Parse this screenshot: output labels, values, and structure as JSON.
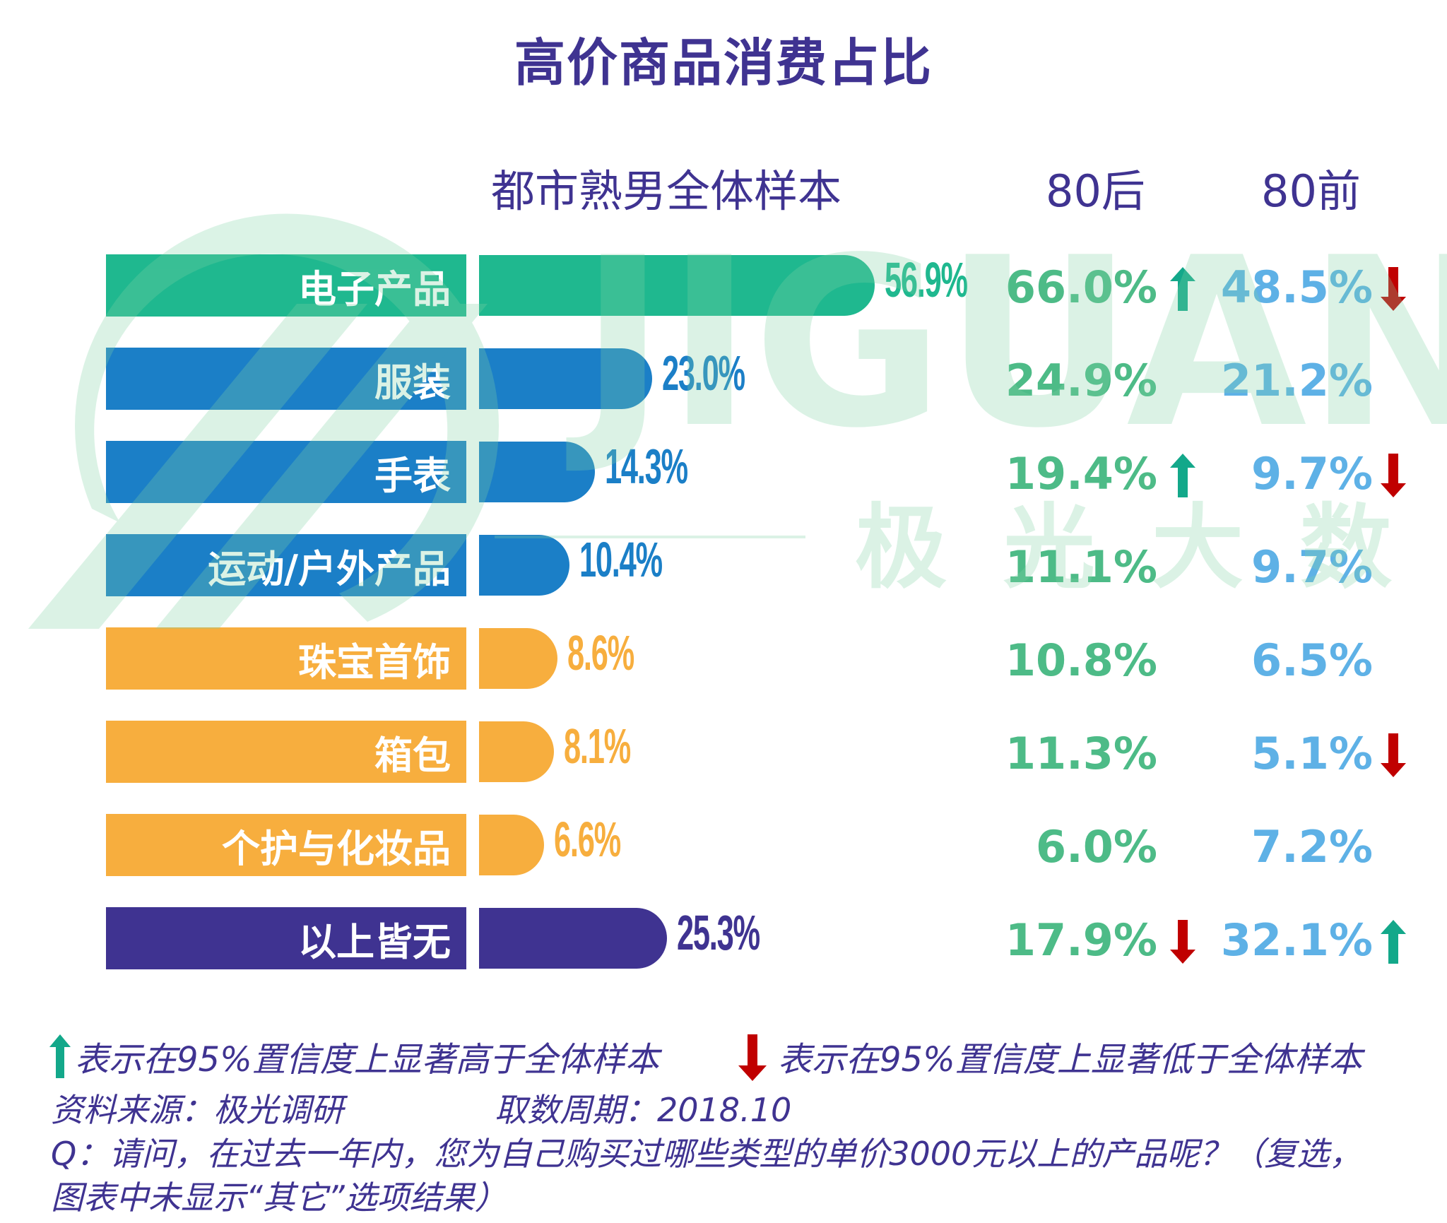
{
  "title": "高价商品消费占比",
  "headers": {
    "total": "都市熟男全体样本",
    "post80": "80后",
    "pre80": "80前"
  },
  "colors": {
    "title": "#3f3391",
    "green_bar": "#1fb88f",
    "blue_bar": "#1b7fc7",
    "orange_bar": "#f7ae3e",
    "purple_bar": "#3f3391",
    "post80_text": "#4dbb87",
    "pre80_text": "#5eb1e6",
    "arrow_up": "#13a88a",
    "arrow_down": "#c00000"
  },
  "chart_data": {
    "type": "bar",
    "orientation": "horizontal",
    "title": "高价商品消费占比",
    "xlabel": "",
    "ylabel": "",
    "categories": [
      "电子产品",
      "服装",
      "手表",
      "运动/户外产品",
      "珠宝首饰",
      "箱包",
      "个护与化妆品",
      "以上皆无"
    ],
    "series": [
      {
        "name": "都市熟男全体样本",
        "values": [
          56.9,
          23.0,
          14.3,
          10.4,
          8.6,
          8.1,
          6.6,
          25.3
        ],
        "labels": [
          "56.9%",
          "23.0%",
          "14.3%",
          "10.4%",
          "8.6%",
          "8.1%",
          "6.6%",
          "25.3%"
        ],
        "bar_colors": [
          "green",
          "blue",
          "blue",
          "blue",
          "orange",
          "orange",
          "orange",
          "purple"
        ]
      },
      {
        "name": "80后",
        "values": [
          66.0,
          24.9,
          19.4,
          11.1,
          10.8,
          11.3,
          6.0,
          17.9
        ],
        "labels": [
          "66.0%",
          "24.9%",
          "19.4%",
          "11.1%",
          "10.8%",
          "11.3%",
          "6.0%",
          "17.9%"
        ],
        "significance": [
          "up",
          null,
          "up",
          null,
          null,
          null,
          null,
          "down"
        ]
      },
      {
        "name": "80前",
        "values": [
          48.5,
          21.2,
          9.7,
          9.7,
          6.5,
          5.1,
          7.2,
          32.1
        ],
        "labels": [
          "48.5%",
          "21.2%",
          "9.7%",
          "9.7%",
          "6.5%",
          "5.1%",
          "7.2%",
          "32.1%"
        ],
        "significance": [
          "down",
          null,
          "down",
          null,
          null,
          "down",
          null,
          "up"
        ]
      }
    ],
    "unit": "%",
    "grid": false
  },
  "legend": {
    "up": {
      "icon": "arrow-up-icon",
      "text": "表示在95%置信度上显著高于全体样本"
    },
    "down": {
      "icon": "arrow-down-icon",
      "text": "表示在95%置信度上显著低于全体样本"
    }
  },
  "footer": {
    "source": "资料来源：极光调研",
    "period": "取数周期：2018.10",
    "question_line1": "Q：请问，在过去一年内，您为自己购买过哪些类型的单价3000元以上的产品呢？（复选，",
    "question_line2": "图表中未显示“其它”选项结果）"
  },
  "watermark": {
    "latin": "JIGUANG",
    "chinese": "极光大数据"
  }
}
